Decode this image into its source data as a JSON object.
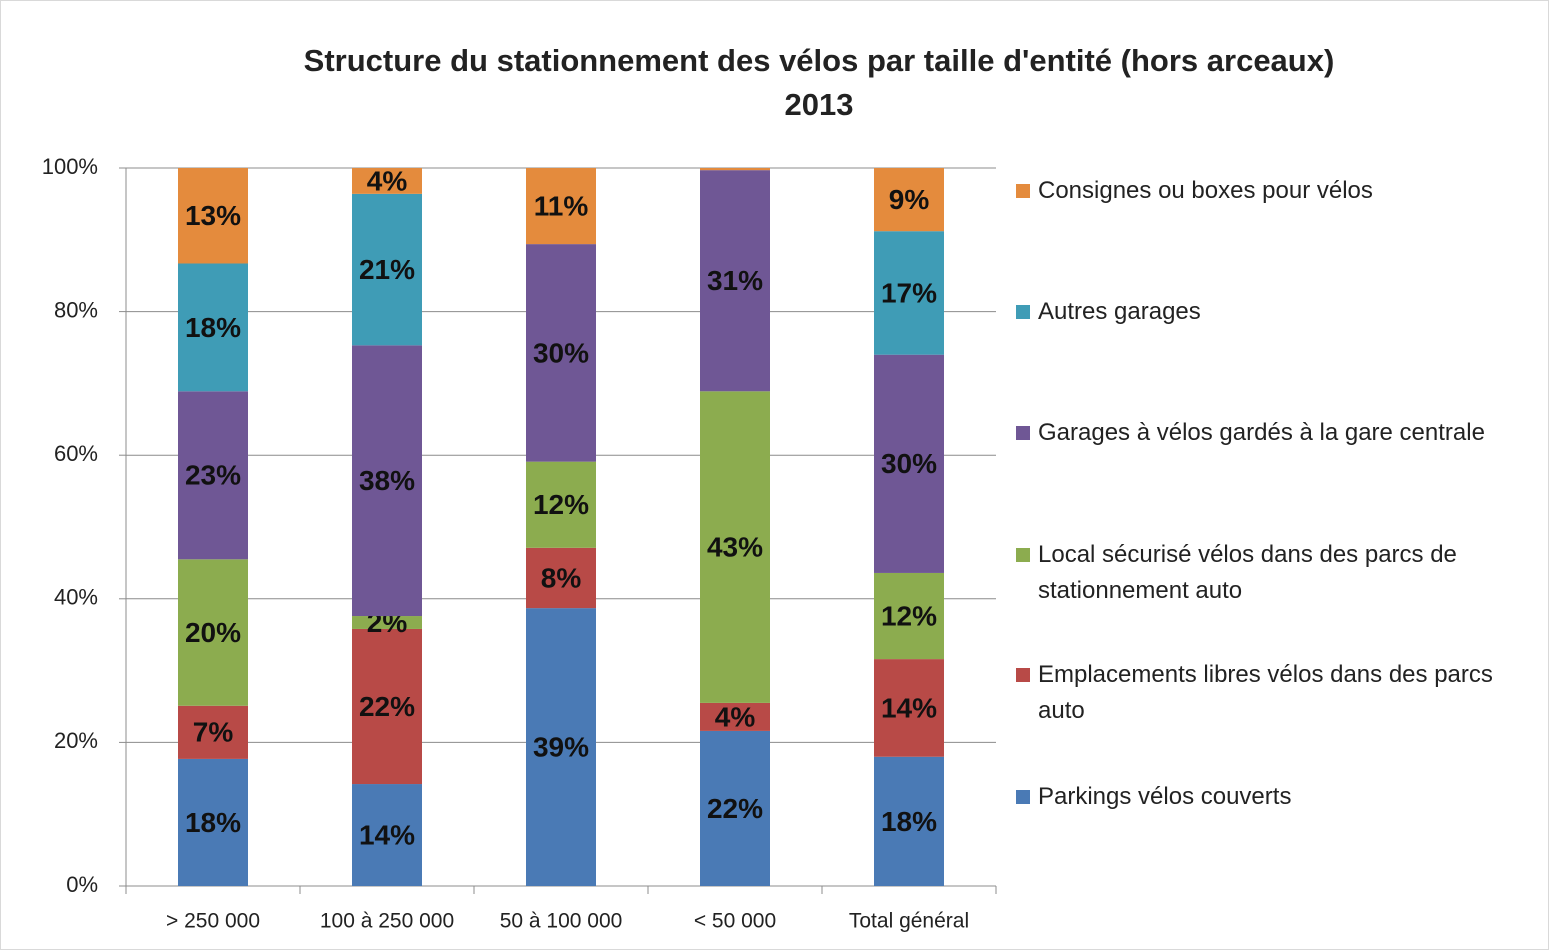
{
  "chart_data": {
    "type": "stacked_bar",
    "title": "Structure du stationnement des vélos par taille d'entité (hors arceaux)",
    "subtitle": "2013",
    "categories": [
      "> 250 000",
      "100 à 250 000",
      "50 à 100 000",
      "< 50 000",
      "Total général"
    ],
    "series": [
      {
        "name": "Parkings vélos couverts",
        "color": "#4a7ab5",
        "values": [
          17.7,
          14.2,
          38.7,
          21.6,
          18.0
        ],
        "value_labels": [
          "18%",
          "14%",
          "39%",
          "22%",
          "18%"
        ]
      },
      {
        "name": "Emplacements libres vélos dans des parcs auto",
        "color": "#b84a47",
        "values": [
          7.4,
          21.6,
          8.4,
          3.9,
          13.6
        ],
        "value_labels": [
          "7%",
          "22%",
          "8%",
          "4%",
          "14%"
        ]
      },
      {
        "name": "Local sécurisé vélos dans des parcs de stationnement auto",
        "color": "#8cac4f",
        "values": [
          20.4,
          1.8,
          12.0,
          43.4,
          12.0
        ],
        "value_labels": [
          "20%",
          "2%",
          "12%",
          "43%",
          "12%"
        ]
      },
      {
        "name": "Garages à vélos gardés à la gare centrale",
        "color": "#6f5795",
        "values": [
          23.4,
          37.7,
          30.3,
          30.8,
          30.4
        ],
        "value_labels": [
          "23%",
          "38%",
          "30%",
          "31%",
          "30%"
        ]
      },
      {
        "name": "Autres garages",
        "color": "#3f9cb6",
        "values": [
          17.8,
          21.1,
          0,
          0,
          17.2
        ],
        "value_labels": [
          "18%",
          "21%",
          null,
          null,
          "17%"
        ]
      },
      {
        "name": "Consignes ou boxes pour vélos",
        "color": "#e48b3d",
        "values": [
          13.3,
          3.6,
          10.6,
          0.3,
          8.8
        ],
        "value_labels": [
          "13%",
          "4%",
          "11%",
          null,
          "9%"
        ]
      }
    ],
    "ylim": [
      0,
      100
    ],
    "yticks": [
      {
        "value": 0,
        "label": "0%"
      },
      {
        "value": 20,
        "label": "20%"
      },
      {
        "value": 40,
        "label": "40%"
      },
      {
        "value": 60,
        "label": "60%"
      },
      {
        "value": 80,
        "label": "80%"
      },
      {
        "value": 100,
        "label": "100%"
      }
    ],
    "grid": true,
    "legend": "right"
  }
}
